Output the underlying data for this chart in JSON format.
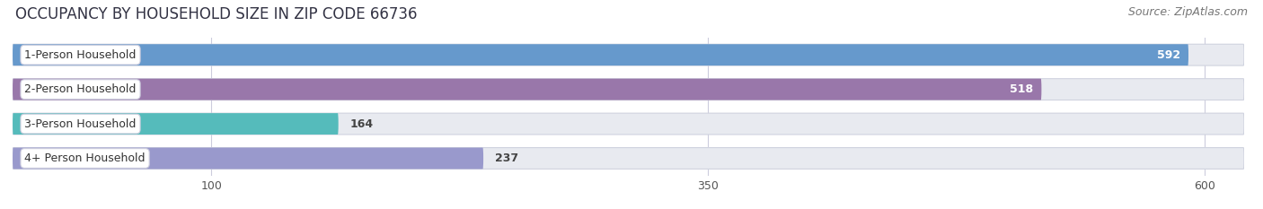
{
  "title": "OCCUPANCY BY HOUSEHOLD SIZE IN ZIP CODE 66736",
  "source": "Source: ZipAtlas.com",
  "categories": [
    "1-Person Household",
    "2-Person Household",
    "3-Person Household",
    "4+ Person Household"
  ],
  "values": [
    592,
    518,
    164,
    237
  ],
  "bar_colors": [
    "#6699CC",
    "#9977AA",
    "#55BBBB",
    "#9999CC"
  ],
  "label_text_colors": [
    "white",
    "white",
    "black",
    "black"
  ],
  "background_color": "#ffffff",
  "bar_bg_color": "#e8eaf0",
  "bar_bg_edge_color": "#d0d3df",
  "xticks": [
    100,
    350,
    600
  ],
  "xmax": 620,
  "title_fontsize": 12,
  "source_fontsize": 9,
  "bar_label_fontsize": 9,
  "category_fontsize": 9
}
